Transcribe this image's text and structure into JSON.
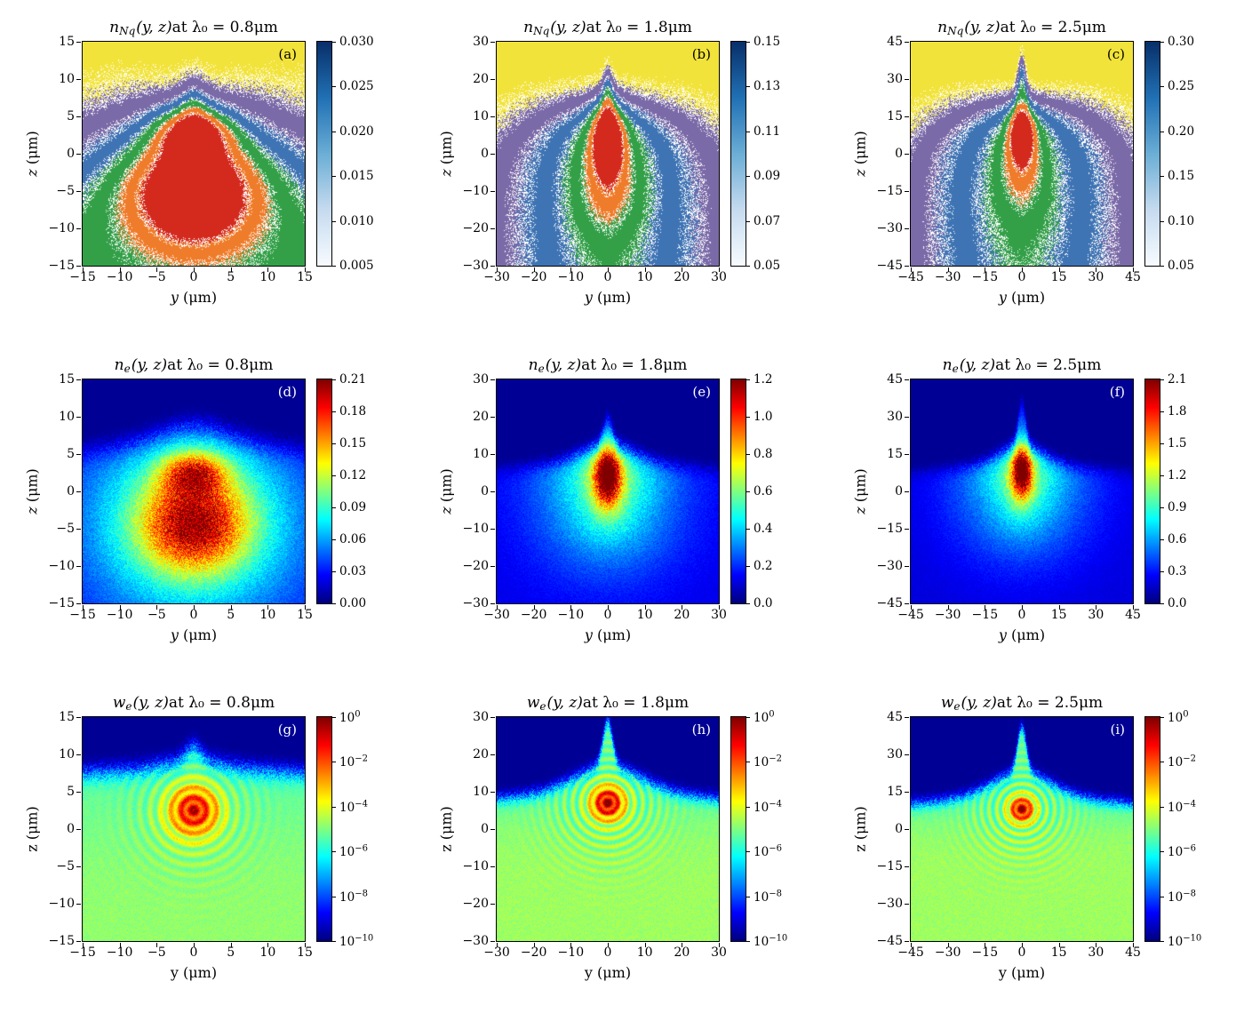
{
  "figure": {
    "background": "#ffffff",
    "band_colors": [
      "#f2e33b",
      "#7b6aa8",
      "#3f74b4",
      "#33a048",
      "#ef7c2a",
      "#d42a1e"
    ],
    "contour_color": "#ffffff",
    "blues_colorbar": [
      "#f7fbff",
      "#c6dbef",
      "#6baed6",
      "#2171b5",
      "#08306b"
    ]
  },
  "chart_data": [
    {
      "type": "heatmap",
      "panel_label": "(a)",
      "label_color": "#000000",
      "title": {
        "var": "n",
        "sub": "Nq",
        "args": "(y, z)",
        "tail": " at λ₀ = 0.8μm"
      },
      "xlabel_var": "y",
      "xlabel_unit": " (μm)",
      "ylabel_var": "z",
      "ylabel_unit": " (μm)",
      "axis_font": "italic",
      "xlim": [
        -15,
        15
      ],
      "ylim": [
        -15,
        15
      ],
      "xticks": [
        "−15",
        "−10",
        "−5",
        "0",
        "5",
        "10",
        "15"
      ],
      "yticks": [
        "−15",
        "−10",
        "−5",
        "0",
        "5",
        "10",
        "15"
      ],
      "colorbar": {
        "style": "blues",
        "scale": "linear",
        "range": [
          0.005,
          0.03
        ],
        "tick_labels": [
          "0.030",
          "0.025",
          "0.020",
          "0.015",
          "0.010",
          "0.005"
        ]
      },
      "render": {
        "kind": "bands",
        "seed": 11,
        "bgAmp": 3.0,
        "bgZ0": 5.5,
        "zDrop": 6.0,
        "bgW": 1.6,
        "bgWGrow": 2.8,
        "xFall": 0,
        "spike": 2.5,
        "spikeSx": 1.5,
        "noise": 0.5,
        "lw": 0.09,
        "lobes": [
          {
            "x": 0,
            "z": 2.8,
            "sx": 3.4,
            "sz": 2.4,
            "a": 2.8
          },
          {
            "x": 0,
            "z": -5.5,
            "sx": 4.8,
            "sz": 4.2,
            "a": 3.2
          },
          {
            "x": 0,
            "z": -5.0,
            "sx": 8.5,
            "sz": 7.0,
            "a": 0.9
          }
        ]
      }
    },
    {
      "type": "heatmap",
      "panel_label": "(b)",
      "label_color": "#000000",
      "title": {
        "var": "n",
        "sub": "Nq",
        "args": "(y, z)",
        "tail": " at λ₀ = 1.8μm"
      },
      "xlabel_var": "y",
      "xlabel_unit": " (μm)",
      "ylabel_var": "z",
      "ylabel_unit": " (μm)",
      "axis_font": "italic",
      "xlim": [
        -30,
        30
      ],
      "ylim": [
        -30,
        30
      ],
      "xticks": [
        "−30",
        "−20",
        "−10",
        "0",
        "10",
        "20",
        "30"
      ],
      "yticks": [
        "−30",
        "−20",
        "−10",
        "0",
        "10",
        "20",
        "30"
      ],
      "colorbar": {
        "style": "blues",
        "scale": "linear",
        "range": [
          0.05,
          0.15
        ],
        "tick_labels": [
          "0.15",
          "0.13",
          "0.11",
          "0.09",
          "0.07",
          "0.05"
        ]
      },
      "render": {
        "kind": "bands",
        "seed": 22,
        "bgAmp": 2.7,
        "bgZ0": 13,
        "zDrop": 6,
        "bgW": 2.2,
        "bgWGrow": 3.5,
        "xFall": 0.62,
        "spike": 7,
        "spikeSx": 1.2,
        "noise": 0.5,
        "lw": 0.09,
        "lobes": [
          {
            "x": 0,
            "z": 4,
            "sx": 2.6,
            "sz": 6.5,
            "a": 3.6
          },
          {
            "x": 0,
            "z": -4,
            "sx": 6,
            "sz": 11,
            "a": 1.25
          },
          {
            "x": 0,
            "z": -12,
            "sx": 11,
            "sz": 10,
            "a": 0.35
          }
        ]
      }
    },
    {
      "type": "heatmap",
      "panel_label": "(c)",
      "label_color": "#000000",
      "title": {
        "var": "n",
        "sub": "Nq",
        "args": "(y, z)",
        "tail": " at λ₀ = 2.5μm"
      },
      "xlabel_var": "y",
      "xlabel_unit": " (μm)",
      "ylabel_var": "z",
      "ylabel_unit": " (μm)",
      "axis_font": "italic",
      "xlim": [
        -45,
        45
      ],
      "ylim": [
        -45,
        45
      ],
      "xticks": [
        "−45",
        "−30",
        "−15",
        "0",
        "15",
        "30",
        "45"
      ],
      "yticks": [
        "−45",
        "−30",
        "−15",
        "0",
        "15",
        "30",
        "45"
      ],
      "colorbar": {
        "style": "blues",
        "scale": "linear",
        "range": [
          0.05,
          0.3
        ],
        "tick_labels": [
          "0.30",
          "0.25",
          "0.20",
          "0.15",
          "0.10",
          "0.05"
        ]
      },
      "render": {
        "kind": "bands",
        "seed": 33,
        "bgAmp": 2.7,
        "bgZ0": 20,
        "zDrop": 9,
        "bgW": 3,
        "bgWGrow": 5,
        "xFall": 0.66,
        "spike": 16,
        "spikeSx": 1.6,
        "noise": 0.5,
        "lw": 0.09,
        "lobes": [
          {
            "x": 0,
            "z": 8,
            "sx": 3,
            "sz": 7,
            "a": 3.6
          },
          {
            "x": 0,
            "z": -2,
            "sx": 6.5,
            "sz": 12,
            "a": 1.3
          },
          {
            "x": 0,
            "z": -18,
            "sx": 16,
            "sz": 14,
            "a": 0.35
          }
        ]
      }
    },
    {
      "type": "heatmap",
      "panel_label": "(d)",
      "label_color": "#ffffff",
      "title": {
        "var": "n",
        "sub": "e",
        "args": "(y, z)",
        "tail": " at λ₀ = 0.8μm"
      },
      "xlabel_var": "y",
      "xlabel_unit": " (μm)",
      "ylabel_var": "z",
      "ylabel_unit": " (μm)",
      "axis_font": "italic",
      "xlim": [
        -15,
        15
      ],
      "ylim": [
        -15,
        15
      ],
      "xticks": [
        "−15",
        "−10",
        "−5",
        "0",
        "5",
        "10",
        "15"
      ],
      "yticks": [
        "−15",
        "−10",
        "−5",
        "0",
        "5",
        "10",
        "15"
      ],
      "colorbar": {
        "style": "jet",
        "scale": "linear",
        "range": [
          0.0,
          0.21
        ],
        "tick_labels": [
          "0.21",
          "0.18",
          "0.15",
          "0.12",
          "0.09",
          "0.06",
          "0.03",
          "0.00"
        ]
      },
      "render": {
        "kind": "jet",
        "seed": 44,
        "z0": 6.5,
        "zDrop": 1,
        "domeAmp": 2.5,
        "domeSx": 5,
        "spikeAmp": 0,
        "spikeSx": 1,
        "w": 0.9,
        "b0": 0.42,
        "cx": 0,
        "cz": -4,
        "R": 14,
        "baseFloor": 0.3,
        "noise": 0.35,
        "edgeNoise": 1.0,
        "lobes": [
          {
            "x": 0,
            "z": 2.5,
            "sx": 3,
            "sz": 2,
            "a": 0.42
          },
          {
            "x": 0,
            "z": -4.5,
            "sx": 4.8,
            "sz": 4.2,
            "a": 0.45
          },
          {
            "x": 0,
            "z": -4,
            "sx": 8,
            "sz": 6.5,
            "a": 0.15
          }
        ]
      }
    },
    {
      "type": "heatmap",
      "panel_label": "(e)",
      "label_color": "#ffffff",
      "title": {
        "var": "n",
        "sub": "e",
        "args": "(y, z)",
        "tail": " at λ₀ = 1.8μm"
      },
      "xlabel_var": "y",
      "xlabel_unit": " (μm)",
      "ylabel_var": "z",
      "ylabel_unit": " (μm)",
      "axis_font": "italic",
      "xlim": [
        -30,
        30
      ],
      "ylim": [
        -30,
        30
      ],
      "xticks": [
        "−30",
        "−20",
        "−10",
        "0",
        "10",
        "20",
        "30"
      ],
      "yticks": [
        "−30",
        "−20",
        "−10",
        "0",
        "10",
        "20",
        "30"
      ],
      "colorbar": {
        "style": "jet",
        "scale": "linear",
        "range": [
          0.0,
          1.2
        ],
        "tick_labels": [
          "1.2",
          "1.0",
          "0.8",
          "0.6",
          "0.4",
          "0.2",
          "0.0"
        ]
      },
      "render": {
        "kind": "jet",
        "seed": 55,
        "z0": 8,
        "zDrop": 2,
        "domeAmp": 5,
        "domeSx": 7,
        "spikeAmp": 7,
        "spikeSx": 1.2,
        "w": 1.2,
        "b0": 0.34,
        "cx": 0,
        "cz": -2,
        "R": 20,
        "baseFloor": 0.3,
        "noise": 0.35,
        "edgeNoise": 1.5,
        "lobes": [
          {
            "x": 0,
            "z": 4,
            "sx": 2.8,
            "sz": 6,
            "a": 0.5
          },
          {
            "x": 0,
            "z": 5,
            "sx": 1.8,
            "sz": 4,
            "a": 0.28
          },
          {
            "x": 0,
            "z": 0,
            "sx": 7,
            "sz": 9,
            "a": 0.13
          },
          {
            "x": 0,
            "z": 6,
            "sx": 13,
            "sz": 5,
            "a": 0.08
          }
        ]
      }
    },
    {
      "type": "heatmap",
      "panel_label": "(f)",
      "label_color": "#ffffff",
      "title": {
        "var": "n",
        "sub": "e",
        "args": "(y, z)",
        "tail": " at λ₀ = 2.5μm"
      },
      "xlabel_var": "y",
      "xlabel_unit": " (μm)",
      "ylabel_var": "z",
      "ylabel_unit": " (μm)",
      "axis_font": "italic",
      "xlim": [
        -45,
        45
      ],
      "ylim": [
        -45,
        45
      ],
      "xticks": [
        "−45",
        "−30",
        "−15",
        "0",
        "15",
        "30",
        "45"
      ],
      "yticks": [
        "−45",
        "−30",
        "−15",
        "0",
        "15",
        "30",
        "45"
      ],
      "colorbar": {
        "style": "jet",
        "scale": "linear",
        "range": [
          0.0,
          2.1
        ],
        "tick_labels": [
          "2.1",
          "1.8",
          "1.5",
          "1.2",
          "0.9",
          "0.6",
          "0.3",
          "0.0"
        ]
      },
      "render": {
        "kind": "jet",
        "seed": 66,
        "z0": 11,
        "zDrop": 3,
        "domeAmp": 8,
        "domeSx": 9,
        "spikeAmp": 18,
        "spikeSx": 1.5,
        "w": 1.6,
        "b0": 0.32,
        "cx": 0,
        "cz": 0,
        "R": 28,
        "baseFloor": 0.28,
        "noise": 0.35,
        "edgeNoise": 2.0,
        "lobes": [
          {
            "x": 0,
            "z": 8,
            "sx": 3.2,
            "sz": 8,
            "a": 0.5
          },
          {
            "x": 0,
            "z": 9,
            "sx": 2,
            "sz": 5,
            "a": 0.28
          },
          {
            "x": 0,
            "z": 2,
            "sx": 8,
            "sz": 12,
            "a": 0.13
          },
          {
            "x": 0,
            "z": 8,
            "sx": 16,
            "sz": 7,
            "a": 0.08
          }
        ]
      }
    },
    {
      "type": "heatmap",
      "panel_label": "(g)",
      "label_color": "#ffffff",
      "title": {
        "var": "w",
        "sub": "e",
        "args": "(y, z)",
        "tail": " at λ₀ = 0.8μm"
      },
      "xlabel_var": "y",
      "xlabel_unit": " (μm)",
      "ylabel_var": "z",
      "ylabel_unit": " (μm)",
      "axis_font": "upright",
      "xlim": [
        -15,
        15
      ],
      "ylim": [
        -15,
        15
      ],
      "xticks": [
        "−15",
        "−10",
        "−5",
        "0",
        "5",
        "10",
        "15"
      ],
      "yticks": [
        "−15",
        "−10",
        "−5",
        "0",
        "5",
        "10",
        "15"
      ],
      "colorbar": {
        "style": "jet",
        "scale": "log",
        "range": [
          1e-10,
          1
        ],
        "tick_labels": [
          "10^0",
          "10^−2",
          "10^−4",
          "10^−6",
          "10^−8",
          "10^−10"
        ]
      },
      "render": {
        "kind": "jetlog",
        "seed": 77,
        "z0": 8,
        "zDrop": 0.5,
        "domeAmp": 1.2,
        "domeSx": 4,
        "spikeAmp": 1.8,
        "spikeSx": 1,
        "w": 0.7,
        "base": 0.46,
        "baseDeep": 0.06,
        "cx": 0,
        "cz": 2.5,
        "coreR": 2.4,
        "coreA": 0.4,
        "kr": 4.5,
        "rd": 5.5,
        "ringAmp": 0.1,
        "noise": 0.12,
        "edgeNoise": 0.8
      }
    },
    {
      "type": "heatmap",
      "panel_label": "(h)",
      "label_color": "#ffffff",
      "title": {
        "var": "w",
        "sub": "e",
        "args": "(y, z)",
        "tail": " at λ₀ = 1.8μm"
      },
      "xlabel_var": "y",
      "xlabel_unit": " (μm)",
      "ylabel_var": "z",
      "ylabel_unit": " (μm)",
      "axis_font": "upright",
      "xlim": [
        -30,
        30
      ],
      "ylim": [
        -30,
        30
      ],
      "xticks": [
        "−30",
        "−20",
        "−10",
        "0",
        "10",
        "20",
        "30"
      ],
      "yticks": [
        "−30",
        "−20",
        "−10",
        "0",
        "10",
        "20",
        "30"
      ],
      "colorbar": {
        "style": "jet",
        "scale": "log",
        "range": [
          1e-10,
          1
        ],
        "tick_labels": [
          "10^0",
          "10^−2",
          "10^−4",
          "10^−6",
          "10^−8",
          "10^−10"
        ]
      },
      "render": {
        "kind": "jetlog",
        "seed": 88,
        "z0": 10,
        "zDrop": 2,
        "domeAmp": 7,
        "domeSx": 9,
        "spikeAmp": 12,
        "spikeSx": 1.3,
        "w": 1.0,
        "base": 0.48,
        "baseDeep": 0.05,
        "cx": 0,
        "cz": 7,
        "coreR": 3.2,
        "coreA": 0.45,
        "kr": 2.8,
        "rd": 11,
        "ringAmp": 0.11,
        "noise": 0.12,
        "edgeNoise": 1.2
      }
    },
    {
      "type": "heatmap",
      "panel_label": "(i)",
      "label_color": "#ffffff",
      "title": {
        "var": "w",
        "sub": "e",
        "args": "(y, z)",
        "tail": " at λ₀ = 2.5μm"
      },
      "xlabel_var": "y",
      "xlabel_unit": " (μm)",
      "ylabel_var": "z",
      "ylabel_unit": " (μm)",
      "axis_font": "upright",
      "xlim": [
        -45,
        45
      ],
      "ylim": [
        -45,
        45
      ],
      "xticks": [
        "−45",
        "−30",
        "−15",
        "0",
        "15",
        "30",
        "45"
      ],
      "yticks": [
        "−45",
        "−30",
        "−15",
        "0",
        "15",
        "30",
        "45"
      ],
      "colorbar": {
        "style": "jet",
        "scale": "log",
        "range": [
          1e-10,
          1
        ],
        "tick_labels": [
          "10^0",
          "10^−2",
          "10^−4",
          "10^−6",
          "10^−8",
          "10^−10"
        ]
      },
      "render": {
        "kind": "jetlog",
        "seed": 99,
        "z0": 13,
        "zDrop": 3,
        "domeAmp": 10,
        "domeSx": 12,
        "spikeAmp": 18,
        "spikeSx": 1.8,
        "w": 1.4,
        "base": 0.48,
        "baseDeep": 0.05,
        "cx": 0,
        "cz": 8,
        "coreR": 3.6,
        "coreA": 0.45,
        "kr": 2.0,
        "rd": 15,
        "ringAmp": 0.11,
        "noise": 0.12,
        "edgeNoise": 1.6
      }
    }
  ]
}
